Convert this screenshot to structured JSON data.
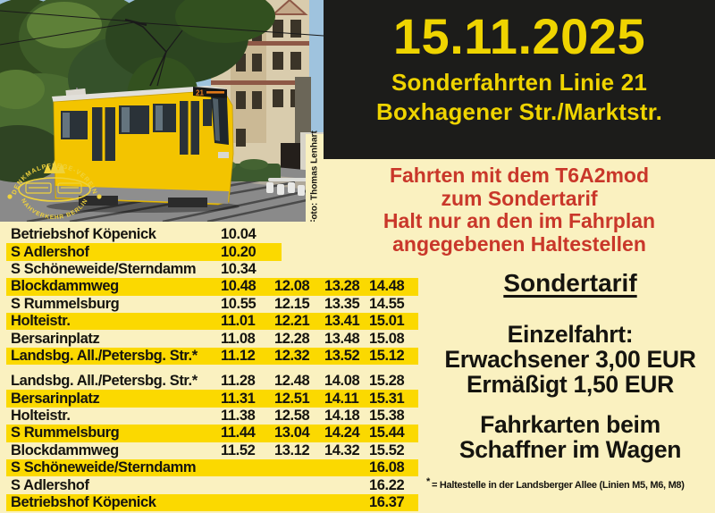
{
  "poster": {
    "date": "15.11.2025",
    "subtitle1": "Sonderfahrten Linie 21",
    "subtitle2": "Boxhagener Str./Marktstr.",
    "notice_lines": [
      "Fahrten mit dem T6A2mod",
      "zum Sondertarif",
      "Halt nur an den im Fahrplan",
      "angegebenen Haltestellen"
    ],
    "tariff": {
      "title": "Sondertarif",
      "lines": [
        "Einzelfahrt:",
        "Erwachsener 3,00 EUR",
        "Ermäßigt 1,50 EUR"
      ]
    },
    "tickets_lines": [
      "Fahrkarten beim",
      "Schaffner im Wagen"
    ],
    "footnote_star": "*",
    "footnote_text": "= Haltestelle in der Landsberger Allee (Linien M5, M6, M8)"
  },
  "photo": {
    "credit": "Foto: Thomas Lenhart",
    "tram_line": "21",
    "logo": {
      "top_text": "DENKMALPFLEGE-VEREIN",
      "bottom_text": "NAHVERKEHR BERLIN"
    }
  },
  "timetable": {
    "blocks": [
      {
        "name": "outbound",
        "rows": [
          {
            "stop": "Betriebshof Köpenick",
            "times": [
              "10.04",
              "",
              "",
              ""
            ],
            "highlight": false
          },
          {
            "stop": "S Adlershof",
            "times": [
              "10.20",
              "",
              "",
              ""
            ],
            "highlight": true,
            "short_bar": true
          },
          {
            "stop": "S Schöneweide/Sterndamm",
            "times": [
              "10.34",
              "",
              "",
              ""
            ],
            "highlight": false
          },
          {
            "stop": "Blockdammweg",
            "times": [
              "10.48",
              "12.08",
              "13.28",
              "14.48"
            ],
            "highlight": true
          },
          {
            "stop": "S Rummelsburg",
            "times": [
              "10.55",
              "12.15",
              "13.35",
              "14.55"
            ],
            "highlight": false
          },
          {
            "stop": "Holteistr.",
            "times": [
              "11.01",
              "12.21",
              "13.41",
              "15.01"
            ],
            "highlight": true
          },
          {
            "stop": "Bersarinplatz",
            "times": [
              "11.08",
              "12.28",
              "13.48",
              "15.08"
            ],
            "highlight": false
          },
          {
            "stop": "Landsbg. All./Petersbg. Str.*",
            "times": [
              "11.12",
              "12.32",
              "13.52",
              "15.12"
            ],
            "highlight": true
          }
        ]
      },
      {
        "name": "return",
        "rows": [
          {
            "stop": "Landsbg. All./Petersbg. Str.*",
            "times": [
              "11.28",
              "12.48",
              "14.08",
              "15.28"
            ],
            "highlight": false
          },
          {
            "stop": "Bersarinplatz",
            "times": [
              "11.31",
              "12.51",
              "14.11",
              "15.31"
            ],
            "highlight": true
          },
          {
            "stop": "Holteistr.",
            "times": [
              "11.38",
              "12.58",
              "14.18",
              "15.38"
            ],
            "highlight": false
          },
          {
            "stop": "S Rummelsburg",
            "times": [
              "11.44",
              "13.04",
              "14.24",
              "15.44"
            ],
            "highlight": true
          },
          {
            "stop": "Blockdammweg",
            "times": [
              "11.52",
              "13.12",
              "14.32",
              "15.52"
            ],
            "highlight": false
          },
          {
            "stop": "S Schöneweide/Sterndamm",
            "times": [
              "",
              "",
              "",
              "16.08"
            ],
            "highlight": true
          },
          {
            "stop": "S Adlershof",
            "times": [
              "",
              "",
              "",
              "16.22"
            ],
            "highlight": false
          },
          {
            "stop": "Betriebshof Köpenick",
            "times": [
              "",
              "",
              "",
              "16.37"
            ],
            "highlight": true
          }
        ]
      }
    ]
  },
  "colors": {
    "cream": "#FAF1C0",
    "highlight": "#FBD900",
    "black_box": "#1C1C1A",
    "accent_yellow": "#EFD400",
    "red": "#C9372A",
    "tram_yellow": "#F3C400"
  }
}
